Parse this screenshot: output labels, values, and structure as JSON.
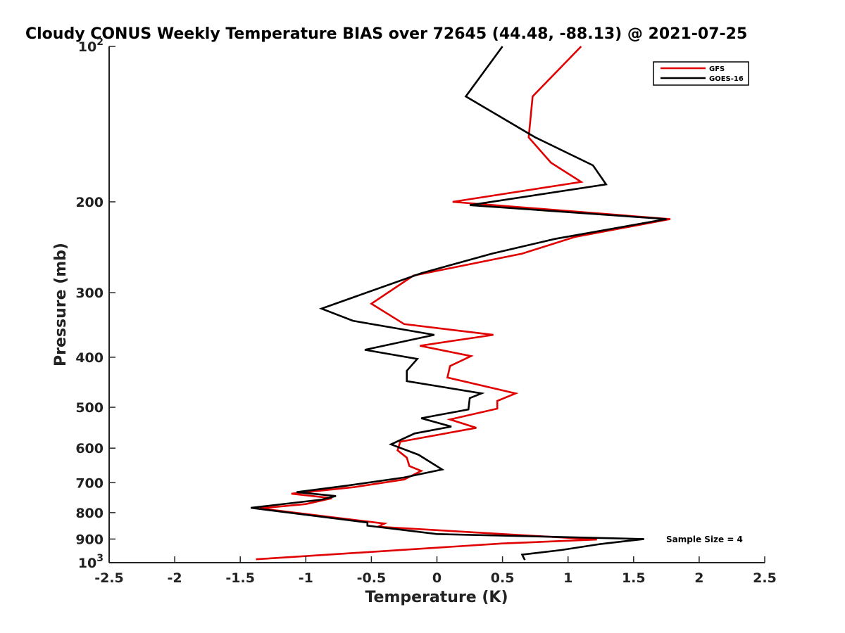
{
  "chart_data": {
    "type": "line",
    "title": "Cloudy CONUS Weekly Temperature BIAS over 72645 (44.48, -88.13) @ 2021-07-25",
    "xlabel": "Temperature (K)",
    "ylabel": "Pressure (mb)",
    "xlim": [
      -2.5,
      2.5
    ],
    "ylim": [
      100,
      1000
    ],
    "y_scale": "log",
    "y_reversed": true,
    "x_ticks": [
      -2.5,
      -2,
      -1.5,
      -1,
      -0.5,
      0,
      0.5,
      1,
      1.5,
      2,
      2.5
    ],
    "x_tick_labels": [
      "-2.5",
      "-2",
      "-1.5",
      "-1",
      "-0.5",
      "0",
      "0.5",
      "1",
      "1.5",
      "2",
      "2.5"
    ],
    "y_ticks": [
      {
        "value": 100,
        "base": "10",
        "exp": "2"
      },
      {
        "value": 200,
        "label": "200"
      },
      {
        "value": 300,
        "label": "300"
      },
      {
        "value": 400,
        "label": "400"
      },
      {
        "value": 500,
        "label": "500"
      },
      {
        "value": 600,
        "label": "600"
      },
      {
        "value": 700,
        "label": "700"
      },
      {
        "value": 800,
        "label": "800"
      },
      {
        "value": 900,
        "label": "900"
      },
      {
        "value": 1000,
        "base": "10",
        "exp": "3"
      }
    ],
    "grid": false,
    "legend_position": "top-right",
    "annotation": "Sample Size = 4",
    "series": [
      {
        "name": "GFS",
        "color": "#e00000",
        "points": [
          [
            1.1,
            100
          ],
          [
            0.73,
            125
          ],
          [
            0.7,
            150
          ],
          [
            0.87,
            168
          ],
          [
            1.1,
            183
          ],
          [
            0.12,
            200
          ],
          [
            1.78,
            216
          ],
          [
            1.05,
            234
          ],
          [
            0.65,
            252
          ],
          [
            -0.18,
            278
          ],
          [
            -0.5,
            315
          ],
          [
            -0.25,
            345
          ],
          [
            0.43,
            362
          ],
          [
            -0.13,
            380
          ],
          [
            0.26,
            398
          ],
          [
            0.1,
            416
          ],
          [
            0.08,
            438
          ],
          [
            0.6,
            470
          ],
          [
            0.46,
            486
          ],
          [
            0.46,
            503
          ],
          [
            0.1,
            528
          ],
          [
            0.3,
            548
          ],
          [
            -0.28,
            583
          ],
          [
            -0.3,
            606
          ],
          [
            -0.23,
            626
          ],
          [
            -0.21,
            650
          ],
          [
            -0.12,
            664
          ],
          [
            -0.25,
            690
          ],
          [
            -0.63,
            714
          ],
          [
            -1.11,
            735
          ],
          [
            -0.8,
            750
          ],
          [
            -1.0,
            770
          ],
          [
            -1.35,
            785
          ],
          [
            -0.4,
            840
          ],
          [
            -0.45,
            852
          ],
          [
            1.22,
            902
          ],
          [
            0.5,
            918
          ],
          [
            -1.38,
            985
          ]
        ]
      },
      {
        "name": "GOES-16",
        "color": "#000000",
        "points": [
          [
            0.5,
            100
          ],
          [
            0.22,
            125
          ],
          [
            0.75,
            150
          ],
          [
            1.19,
            170
          ],
          [
            1.29,
            185
          ],
          [
            0.25,
            203
          ],
          [
            1.75,
            216
          ],
          [
            0.9,
            236
          ],
          [
            0.42,
            252
          ],
          [
            -0.12,
            275
          ],
          [
            -0.88,
            322
          ],
          [
            -0.64,
            340
          ],
          [
            -0.02,
            362
          ],
          [
            -0.55,
            387
          ],
          [
            -0.15,
            403
          ],
          [
            -0.23,
            425
          ],
          [
            -0.23,
            445
          ],
          [
            0.34,
            470
          ],
          [
            0.25,
            480
          ],
          [
            0.24,
            505
          ],
          [
            -0.12,
            525
          ],
          [
            0.11,
            545
          ],
          [
            -0.17,
            562
          ],
          [
            -0.35,
            590
          ],
          [
            -0.14,
            618
          ],
          [
            0.04,
            660
          ],
          [
            -0.25,
            684
          ],
          [
            -0.7,
            710
          ],
          [
            -1.07,
            730
          ],
          [
            -0.77,
            743
          ],
          [
            -0.88,
            755
          ],
          [
            -1.42,
            783
          ],
          [
            -0.53,
            836
          ],
          [
            -0.53,
            848
          ],
          [
            0.0,
            880
          ],
          [
            1.58,
            900
          ],
          [
            1.25,
            920
          ],
          [
            0.95,
            945
          ],
          [
            0.65,
            965
          ],
          [
            0.67,
            988
          ]
        ]
      }
    ]
  }
}
